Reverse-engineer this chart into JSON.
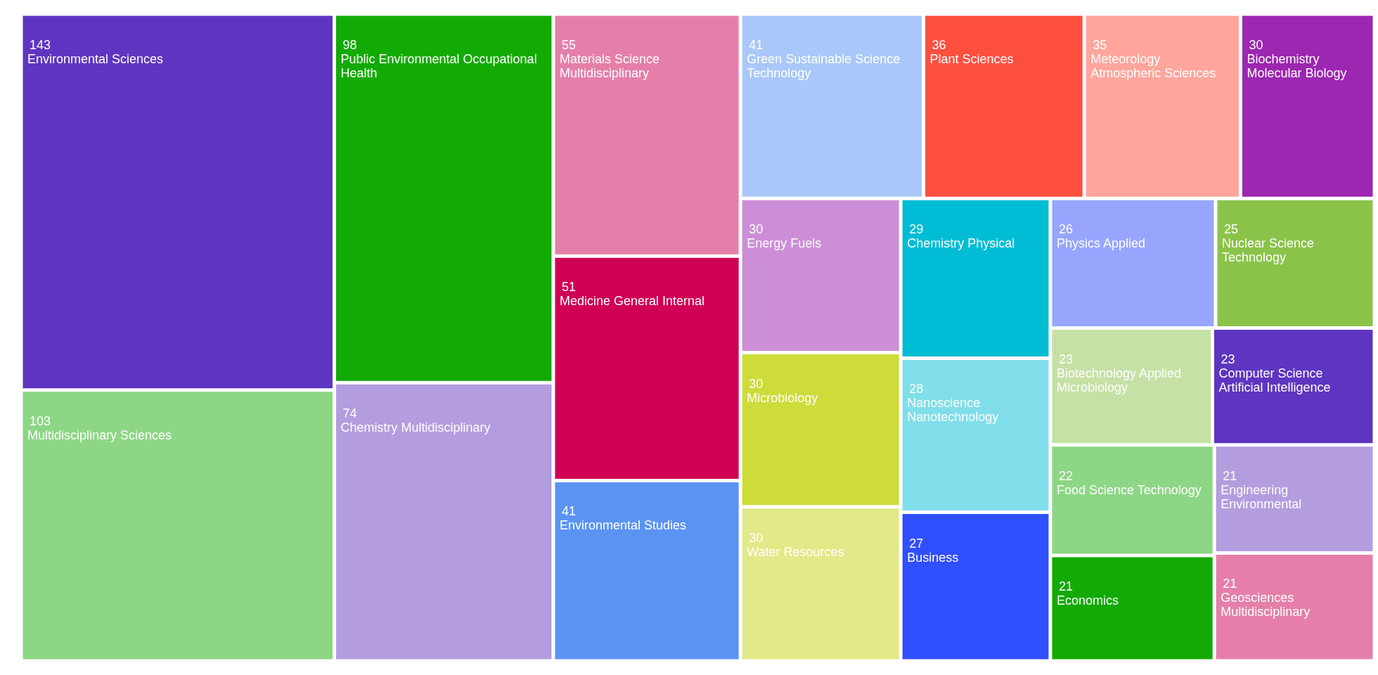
{
  "chart_data": {
    "type": "other",
    "categories": [
      "Environmental Sciences",
      "Multidisciplinary Sciences",
      "Public Environmental Occupational Health",
      "Chemistry Multidisciplinary",
      "Materials Science Multidisciplinary",
      "Medicine General Internal",
      "Environmental Studies",
      "Green Sustainable Science Technology",
      "Plant Sciences",
      "Meteorology Atmospheric Sciences",
      "Biochemistry Molecular Biology",
      "Energy Fuels",
      "Microbiology",
      "Water Resources",
      "Chemistry Physical",
      "Nanoscience Nanotechnology",
      "Business",
      "Physics Applied",
      "Nuclear Science Technology",
      "Biotechnology Applied Microbiology",
      "Computer Science Artificial Intelligence",
      "Food Science Technology",
      "Economics",
      "Engineering Environmental",
      "Geosciences Multidisciplinary"
    ],
    "values": [
      143,
      103,
      98,
      74,
      55,
      51,
      41,
      41,
      36,
      35,
      30,
      30,
      30,
      30,
      29,
      28,
      27,
      26,
      25,
      23,
      23,
      22,
      21,
      21,
      21
    ],
    "colors": [
      "#5e35c1",
      "#8dd685",
      "#13aa05",
      "#b39ddf",
      "#e57fa9",
      "#cf0055",
      "#5a93f2",
      "#a9c8f9",
      "#ff4f3f",
      "#ffa59c",
      "#9c27b0",
      "#cc8ed6",
      "#cddc39",
      "#e3e888",
      "#00bcd4",
      "#80deea",
      "#304ffe",
      "#97a5fd",
      "#8bc34a",
      "#c5e1a5",
      "#5e35c1",
      "#8dd685",
      "#13aa05",
      "#b39ddf",
      "#e57fa9"
    ],
    "data_labels": true
  }
}
